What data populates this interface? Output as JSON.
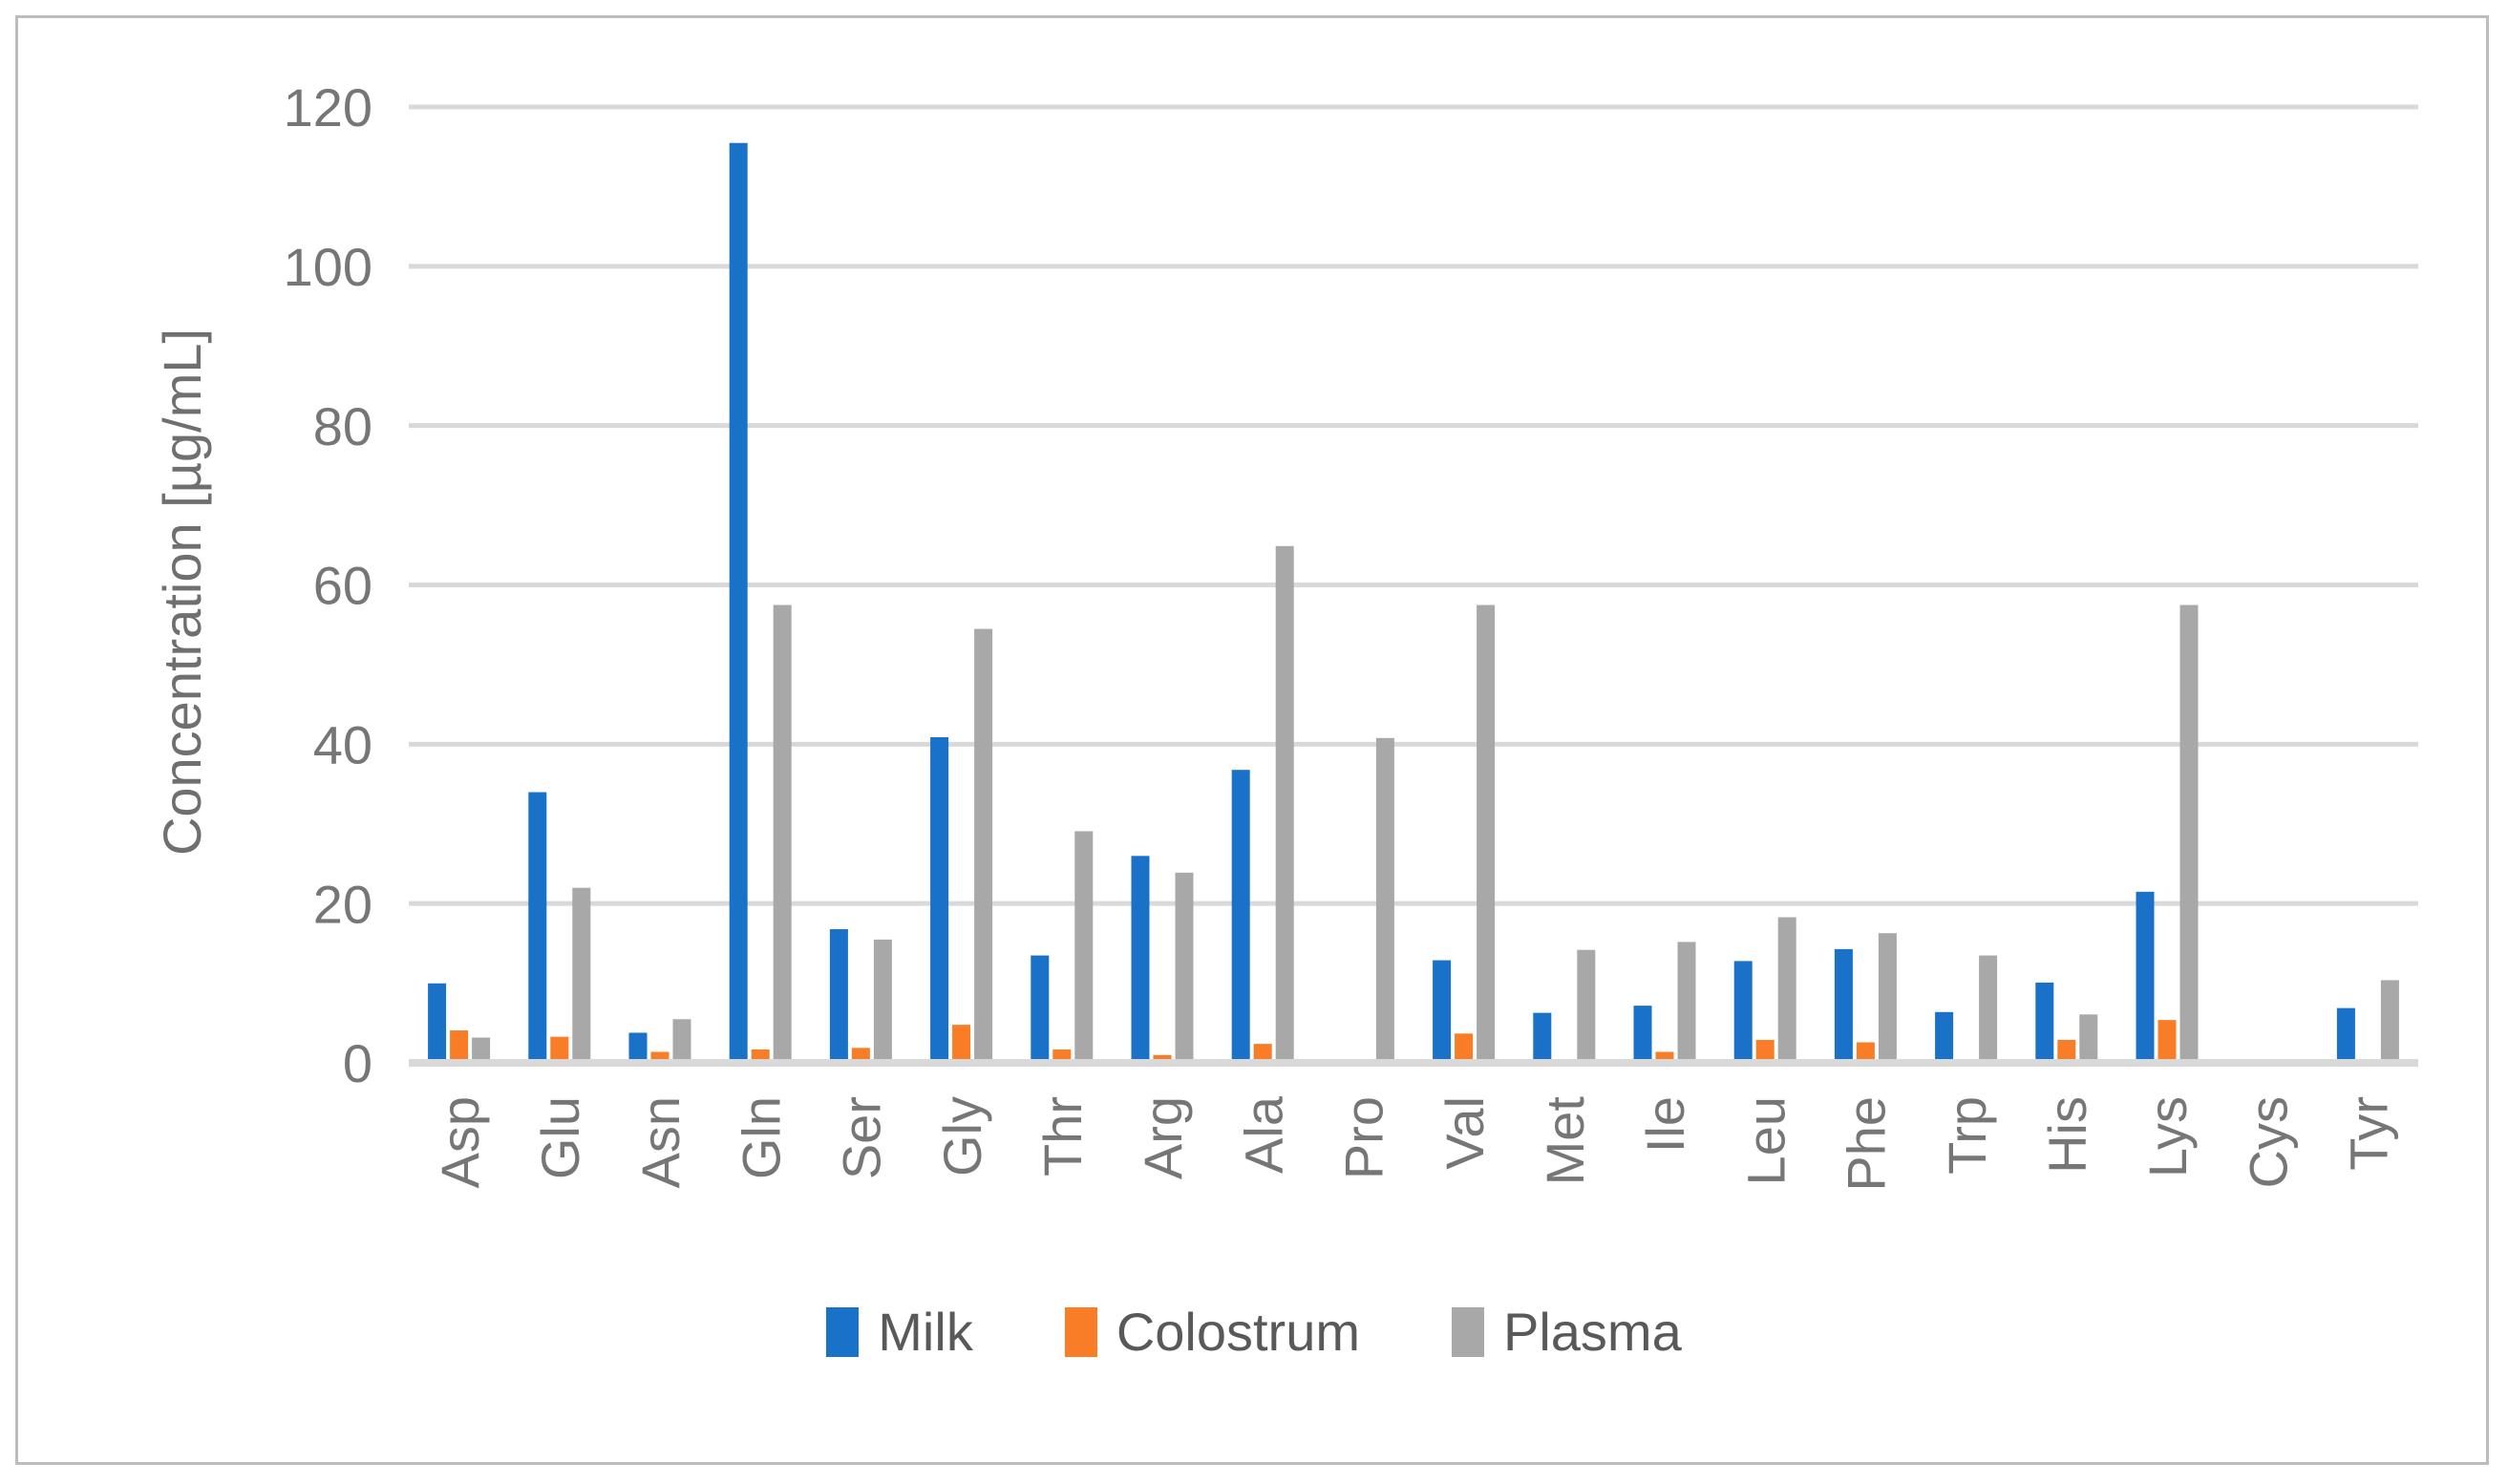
{
  "page": {
    "background": "#ffffff",
    "border_color": "#bdbdbd"
  },
  "colors": {
    "gridline": "#d9d9d9",
    "axis_line": "#d9d9d9",
    "tick_text": "#767676",
    "category_text": "#767676",
    "axis_title_text": "#6f6f6f",
    "legend_text": "#595959"
  },
  "chart_data": {
    "type": "bar",
    "title": "",
    "ylabel": "Concentration [µg/mL]",
    "xlabel": "",
    "ylim": [
      0,
      120
    ],
    "ytick_step": 20,
    "yticks": [
      0,
      20,
      40,
      60,
      80,
      100,
      120
    ],
    "grid": true,
    "legend_position": "bottom",
    "categories": [
      "Asp",
      "Glu",
      "Asn",
      "Gln",
      "Ser",
      "Gly",
      "Thr",
      "Arg",
      "Ala",
      "Pro",
      "Val",
      "Met",
      "Ile",
      "Leu",
      "Phe",
      "Trp",
      "His",
      "Lys",
      "Cys",
      "Tyr"
    ],
    "series": [
      {
        "name": "Milk",
        "color": "#1971c8",
        "values": [
          9.5,
          33.5,
          3.3,
          115.0,
          16.3,
          40.4,
          13.0,
          25.5,
          36.3,
          0,
          12.4,
          5.8,
          6.7,
          12.3,
          13.8,
          5.9,
          9.6,
          21.0,
          0,
          6.4
        ]
      },
      {
        "name": "Colostrum",
        "color": "#f97d26",
        "values": [
          3.6,
          2.8,
          0.9,
          1.2,
          1.4,
          4.3,
          1.2,
          0.5,
          1.9,
          0,
          3.2,
          0,
          0.9,
          2.4,
          2.1,
          0,
          2.4,
          4.9,
          0,
          0
        ]
      },
      {
        "name": "Plasma",
        "color": "#a8a8a8",
        "values": [
          2.7,
          21.5,
          5.0,
          57.0,
          15.0,
          54.0,
          28.6,
          23.4,
          64.4,
          40.3,
          57.0,
          13.7,
          14.7,
          17.8,
          15.8,
          13.0,
          5.6,
          57.0,
          0,
          9.9
        ]
      }
    ]
  }
}
